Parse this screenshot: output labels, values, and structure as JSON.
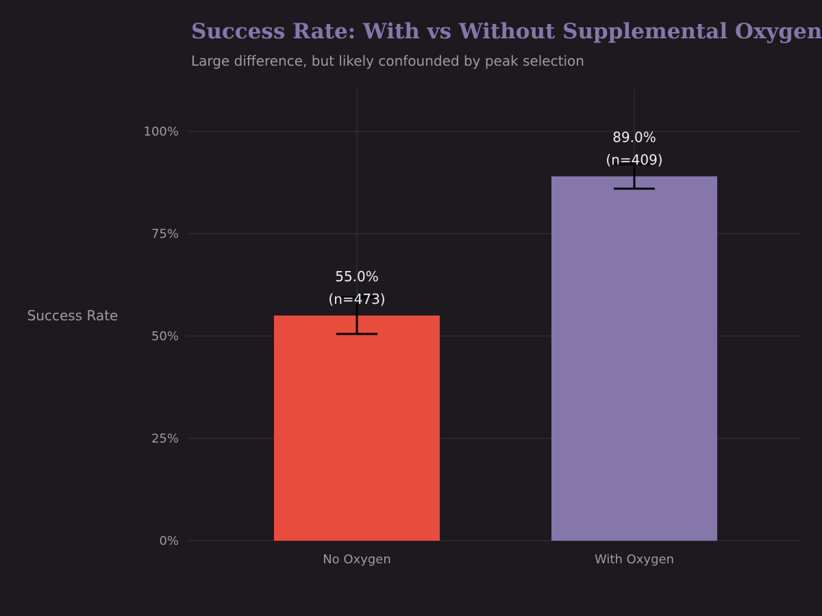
{
  "chart_data": {
    "type": "bar",
    "title": "Success Rate: With vs Without Supplemental Oxygen",
    "subtitle": "Large difference, but likely confounded by peak selection",
    "xlabel": "",
    "ylabel": "Success Rate",
    "categories": [
      "No Oxygen",
      "With Oxygen"
    ],
    "values": [
      55.0,
      89.0
    ],
    "error": [
      4.5,
      3.0
    ],
    "value_labels": [
      "55.0%",
      "89.0%"
    ],
    "n_labels": [
      "(n=473)",
      "(n=409)"
    ],
    "colors": [
      "#e74c3c",
      "#8577aa"
    ],
    "ylim": [
      0,
      110
    ],
    "yticks": [
      0,
      25,
      50,
      75,
      100
    ],
    "ytick_labels": [
      "0%",
      "25%",
      "50%",
      "75%",
      "100%"
    ],
    "grid": true,
    "background": "#1c1a1f"
  }
}
